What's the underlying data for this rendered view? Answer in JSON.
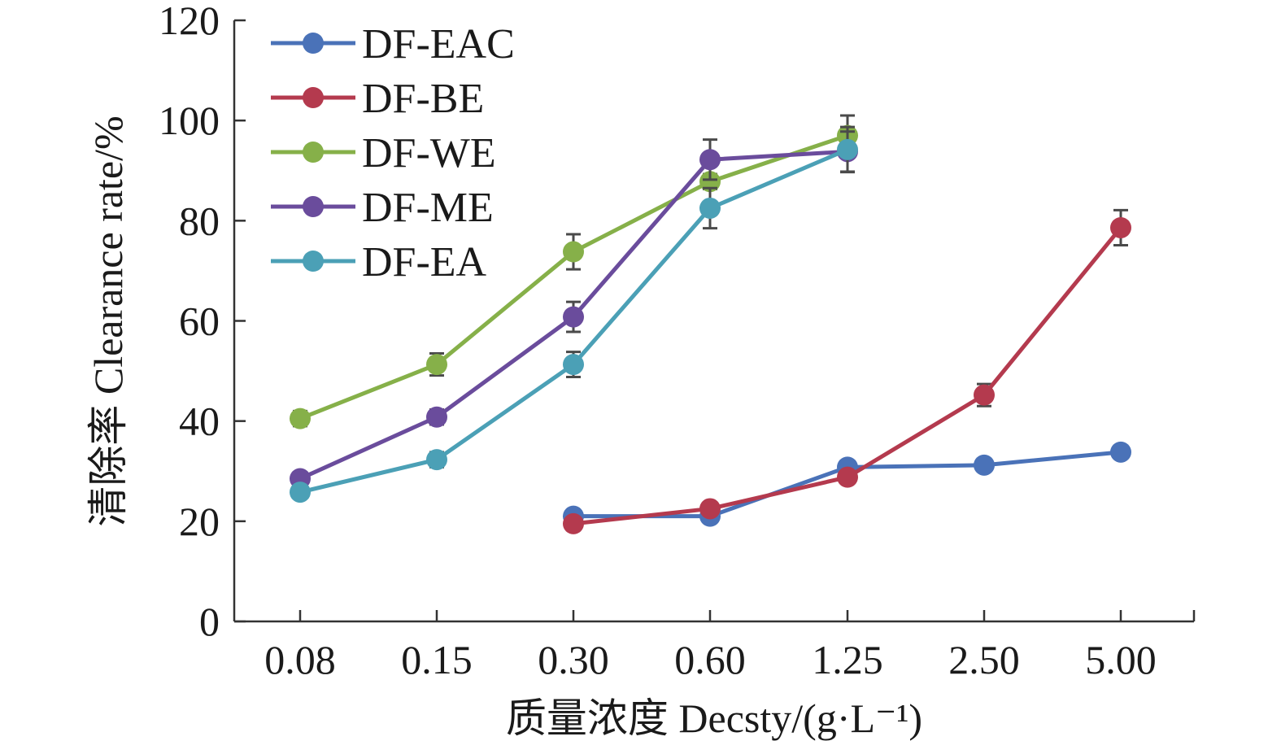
{
  "chart_data": {
    "type": "line",
    "title": "",
    "xlabel": "质量浓度 Decsty/(g·L⁻¹)",
    "ylabel": "清除率 Clearance rate/%",
    "categories": [
      "0.08",
      "0.15",
      "0.30",
      "0.60",
      "1.25",
      "2.50",
      "5.00"
    ],
    "ylim": [
      0,
      120
    ],
    "yticks": [
      0,
      20,
      40,
      60,
      80,
      100,
      120
    ],
    "grid": false,
    "legend_position": "top-left",
    "series": [
      {
        "name": "DF-EAC",
        "color": "#4a72b8",
        "values": [
          null,
          null,
          21.0,
          21.0,
          30.8,
          31.2,
          33.8
        ],
        "errors": [
          null,
          null,
          0.8,
          0.8,
          1.0,
          1.0,
          1.0
        ]
      },
      {
        "name": "DF-BE",
        "color": "#b43a4e",
        "values": [
          null,
          null,
          19.5,
          22.5,
          28.8,
          45.2,
          78.6
        ],
        "errors": [
          null,
          null,
          0.8,
          0.8,
          1.0,
          2.2,
          3.5
        ]
      },
      {
        "name": "DF-WE",
        "color": "#86b049",
        "values": [
          40.5,
          51.3,
          73.8,
          87.8,
          97.0,
          null,
          null
        ],
        "errors": [
          1.5,
          2.2,
          3.5,
          1.5,
          4.0,
          null,
          null
        ]
      },
      {
        "name": "DF-ME",
        "color": "#6a4c9c",
        "values": [
          28.5,
          40.8,
          60.8,
          92.2,
          93.8,
          null,
          null
        ],
        "errors": [
          1.0,
          1.5,
          3.0,
          4.0,
          4.0,
          null,
          null
        ]
      },
      {
        "name": "DF-EA",
        "color": "#4ba0b6",
        "values": [
          25.8,
          32.3,
          51.3,
          82.5,
          94.2,
          null,
          null
        ],
        "errors": [
          1.0,
          1.5,
          2.5,
          4.0,
          4.5,
          null,
          null
        ]
      }
    ]
  }
}
